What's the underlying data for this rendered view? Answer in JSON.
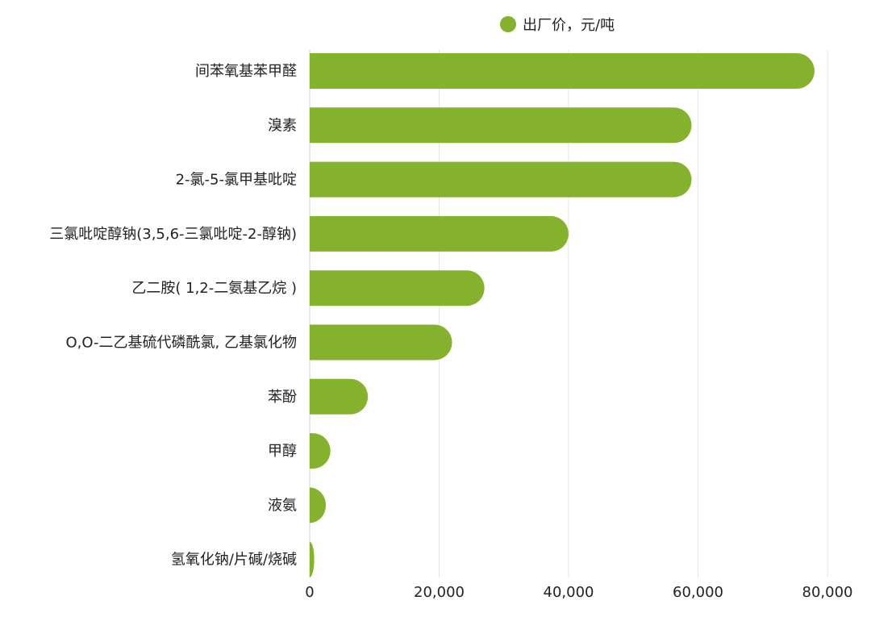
{
  "chart_data": {
    "type": "bar",
    "orientation": "horizontal",
    "categories": [
      "间苯氧基苯甲醛",
      "溴素",
      "2-氯-5-氯甲基吡啶",
      "三氯吡啶醇钠(3,5,6-三氯吡啶-2-醇钠)",
      "乙二胺( 1,2-二氨基乙烷 )",
      "O,O-二乙基硫代磷酰氯, 乙基氯化物",
      "苯酚",
      "甲醇",
      "液氨",
      "氢氧化钠/片碱/烧碱"
    ],
    "series": [
      {
        "name": "出厂价，元/吨",
        "values": [
          78000,
          59000,
          59000,
          40000,
          27000,
          22000,
          9000,
          3200,
          2500,
          700
        ]
      }
    ],
    "xlim": [
      0,
      80000
    ],
    "xticks": [
      "0",
      "20,000",
      "40,000",
      "60,000",
      "80,000"
    ],
    "xtick_values": [
      0,
      20000,
      40000,
      60000,
      80000
    ],
    "grid": true,
    "legend_position": "top",
    "bar_color": "#85b22c",
    "title": "",
    "xlabel": "",
    "ylabel": ""
  }
}
